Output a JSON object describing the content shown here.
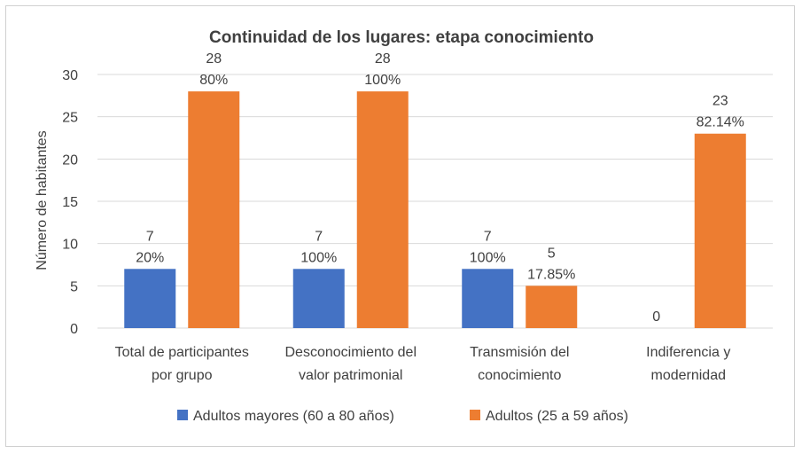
{
  "chart_data": {
    "type": "bar",
    "title": "Continuidad de los lugares: etapa conocimiento",
    "xlabel": "",
    "ylabel": "Número de habitantes",
    "ylim": [
      0,
      30
    ],
    "yticks": [
      0,
      5,
      10,
      15,
      20,
      25,
      30
    ],
    "grid": true,
    "legend_position": "bottom",
    "categories": [
      [
        "Total de participantes",
        "por grupo"
      ],
      [
        "Desconocimiento del",
        "valor patrimonial"
      ],
      [
        "Transmisión del",
        "conocimiento"
      ],
      [
        "Indiferencia y",
        "modernidad"
      ]
    ],
    "series": [
      {
        "name": "Adultos mayores (60 a 80 años)",
        "color": "#4472C4",
        "values": [
          7,
          7,
          7,
          0
        ],
        "labels": [
          [
            "7",
            "20%"
          ],
          [
            "7",
            "100%"
          ],
          [
            "7",
            "100%"
          ],
          [
            "0"
          ]
        ]
      },
      {
        "name": "Adultos (25 a 59 años)",
        "color": "#ED7D31",
        "values": [
          28,
          28,
          5,
          23
        ],
        "labels": [
          [
            "28",
            "80%"
          ],
          [
            "28",
            "100%"
          ],
          [
            "5",
            "17.85%"
          ],
          [
            "23",
            "82.14%"
          ]
        ]
      }
    ]
  }
}
